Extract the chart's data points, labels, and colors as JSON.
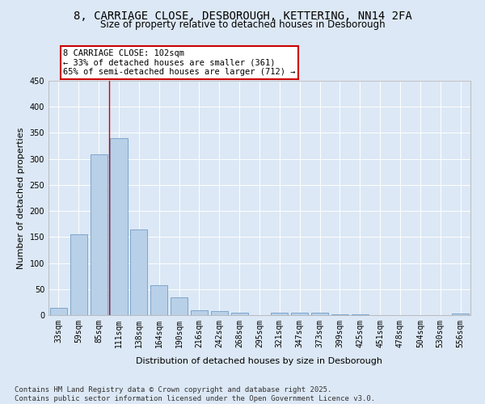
{
  "title_line1": "8, CARRIAGE CLOSE, DESBOROUGH, KETTERING, NN14 2FA",
  "title_line2": "Size of property relative to detached houses in Desborough",
  "xlabel": "Distribution of detached houses by size in Desborough",
  "ylabel": "Number of detached properties",
  "categories": [
    "33sqm",
    "59sqm",
    "85sqm",
    "111sqm",
    "138sqm",
    "164sqm",
    "190sqm",
    "216sqm",
    "242sqm",
    "268sqm",
    "295sqm",
    "321sqm",
    "347sqm",
    "373sqm",
    "399sqm",
    "425sqm",
    "451sqm",
    "478sqm",
    "504sqm",
    "530sqm",
    "556sqm"
  ],
  "values": [
    14,
    155,
    309,
    340,
    165,
    57,
    34,
    9,
    8,
    5,
    0,
    5,
    5,
    4,
    1,
    1,
    0,
    0,
    0,
    0,
    3
  ],
  "bar_color": "#b8d0e8",
  "bar_edge_color": "#6090c0",
  "background_color": "#dce8f5",
  "grid_color": "#ffffff",
  "vline_color": "#cc0000",
  "vline_x": 2.5,
  "annotation_text": "8 CARRIAGE CLOSE: 102sqm\n← 33% of detached houses are smaller (361)\n65% of semi-detached houses are larger (712) →",
  "annotation_box_facecolor": "#ffffff",
  "annotation_box_edgecolor": "#cc0000",
  "ylim": [
    0,
    450
  ],
  "yticks": [
    0,
    50,
    100,
    150,
    200,
    250,
    300,
    350,
    400,
    450
  ],
  "footnote_line1": "Contains HM Land Registry data © Crown copyright and database right 2025.",
  "footnote_line2": "Contains public sector information licensed under the Open Government Licence v3.0.",
  "title1_fontsize": 10,
  "title2_fontsize": 8.5,
  "axis_label_fontsize": 8,
  "tick_fontsize": 7,
  "annotation_fontsize": 7.5,
  "footnote_fontsize": 6.5
}
